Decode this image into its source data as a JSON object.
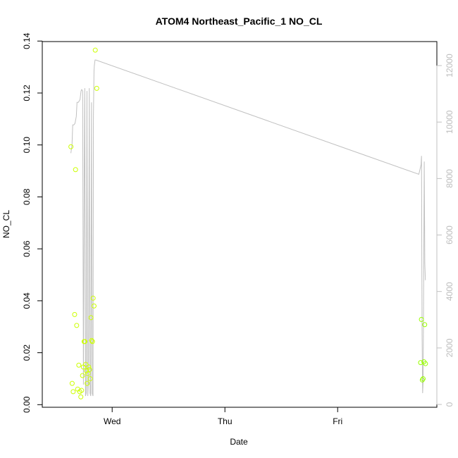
{
  "chart_data": {
    "type": "scatter",
    "title": "ATOM4 Northeast_Pacific_1 NO_CL",
    "xlabel": "Date",
    "ylabel": "NO_CL",
    "x_ticks": [
      "Wed",
      "Thu",
      "Fri"
    ],
    "x_range_days": [
      -0.62,
      2.88
    ],
    "y_left": {
      "ticks": [
        "0.00",
        "0.02",
        "0.04",
        "0.06",
        "0.08",
        "0.10",
        "0.12",
        "0.14"
      ],
      "lim": [
        -0.001,
        0.1398
      ]
    },
    "y_right": {
      "ticks": [
        "0",
        "2000",
        "4000",
        "6000",
        "8000",
        "10000",
        "12000"
      ],
      "lim": [
        -100,
        12850
      ],
      "color": "#c0c0c0"
    },
    "grid": false,
    "series": [
      {
        "type": "scatter",
        "axis": "left",
        "points": [
          {
            "x": -0.366,
            "y": 0.0993,
            "c": "#ccff00"
          },
          {
            "x": -0.355,
            "y": 0.0082,
            "c": "#ccff00"
          },
          {
            "x": -0.346,
            "y": 0.005,
            "c": "#ccff00"
          },
          {
            "x": -0.333,
            "y": 0.0347,
            "c": "#ccff00"
          },
          {
            "x": -0.325,
            "y": 0.0905,
            "c": "#ccff00"
          },
          {
            "x": -0.315,
            "y": 0.0305,
            "c": "#ccff00"
          },
          {
            "x": -0.306,
            "y": 0.006,
            "c": "#ccff00"
          },
          {
            "x": -0.296,
            "y": 0.0152,
            "c": "#ccff00"
          },
          {
            "x": -0.288,
            "y": 0.005,
            "c": "#ccff00"
          },
          {
            "x": -0.278,
            "y": 0.003,
            "c": "#ccff00"
          },
          {
            "x": -0.271,
            "y": 0.0055,
            "c": "#ccff00"
          },
          {
            "x": -0.263,
            "y": 0.0112,
            "c": "#ccff00"
          },
          {
            "x": -0.256,
            "y": 0.0145,
            "c": "#ccff00"
          },
          {
            "x": -0.249,
            "y": 0.0243,
            "c": "#ccff00"
          },
          {
            "x": -0.242,
            "y": 0.0243,
            "c": "#ccff00"
          },
          {
            "x": -0.235,
            "y": 0.0155,
            "c": "#ccff00"
          },
          {
            "x": -0.228,
            "y": 0.013,
            "c": "#ccff00"
          },
          {
            "x": -0.222,
            "y": 0.0082,
            "c": "#ccff00"
          },
          {
            "x": -0.215,
            "y": 0.012,
            "c": "#ccff00"
          },
          {
            "x": -0.208,
            "y": 0.0145,
            "c": "#ccff00"
          },
          {
            "x": -0.201,
            "y": 0.0135,
            "c": "#ccff00"
          },
          {
            "x": -0.195,
            "y": 0.01,
            "c": "#ccff00"
          },
          {
            "x": -0.188,
            "y": 0.0335,
            "c": "#ccff00"
          },
          {
            "x": -0.182,
            "y": 0.0247,
            "c": "#ccff00"
          },
          {
            "x": -0.175,
            "y": 0.0243,
            "c": "#ccff00"
          },
          {
            "x": -0.169,
            "y": 0.041,
            "c": "#ccff00"
          },
          {
            "x": -0.161,
            "y": 0.038,
            "c": "#ccff00"
          },
          {
            "x": -0.15,
            "y": 0.1365,
            "c": "#ccff00"
          },
          {
            "x": -0.137,
            "y": 0.1218,
            "c": "#ccff00"
          },
          {
            "x": 2.736,
            "y": 0.0162,
            "c": "#99ff00"
          },
          {
            "x": 2.743,
            "y": 0.0328,
            "c": "#99ff00"
          },
          {
            "x": 2.751,
            "y": 0.0095,
            "c": "#99ff00"
          },
          {
            "x": 2.758,
            "y": 0.01,
            "c": "#99ff00"
          },
          {
            "x": 2.765,
            "y": 0.0165,
            "c": "#99ff00"
          },
          {
            "x": 2.772,
            "y": 0.0308,
            "c": "#99ff00"
          },
          {
            "x": 2.779,
            "y": 0.0158,
            "c": "#99ff00"
          }
        ]
      },
      {
        "type": "line",
        "axis": "right",
        "color": "#c0c0c0",
        "points": [
          [
            -0.366,
            8900
          ],
          [
            -0.356,
            9200
          ],
          [
            -0.35,
            9900
          ],
          [
            -0.34,
            9900
          ],
          [
            -0.33,
            9950
          ],
          [
            -0.318,
            10200
          ],
          [
            -0.312,
            10700
          ],
          [
            -0.3,
            10700
          ],
          [
            -0.285,
            10800
          ],
          [
            -0.276,
            11100
          ],
          [
            -0.27,
            11150
          ],
          [
            -0.262,
            11100
          ],
          [
            -0.255,
            700
          ],
          [
            -0.248,
            8000
          ],
          [
            -0.243,
            11200
          ],
          [
            -0.236,
            300
          ],
          [
            -0.23,
            400
          ],
          [
            -0.224,
            11100
          ],
          [
            -0.216,
            300
          ],
          [
            -0.21,
            900
          ],
          [
            -0.203,
            11200
          ],
          [
            -0.196,
            400
          ],
          [
            -0.19,
            300
          ],
          [
            -0.183,
            10700
          ],
          [
            -0.177,
            400
          ],
          [
            -0.17,
            300
          ],
          [
            -0.166,
            10200
          ],
          [
            -0.161,
            11800
          ],
          [
            -0.158,
            12000
          ],
          [
            -0.152,
            12200
          ],
          [
            -0.145,
            12200
          ],
          [
            2.72,
            8150
          ],
          [
            2.735,
            8400
          ],
          [
            2.74,
            8500
          ],
          [
            2.744,
            8800
          ],
          [
            2.749,
            2500
          ],
          [
            2.754,
            400
          ],
          [
            2.758,
            800
          ],
          [
            2.762,
            3500
          ],
          [
            2.768,
            8600
          ],
          [
            2.773,
            5000
          ],
          [
            2.778,
            4400
          ]
        ]
      }
    ]
  }
}
